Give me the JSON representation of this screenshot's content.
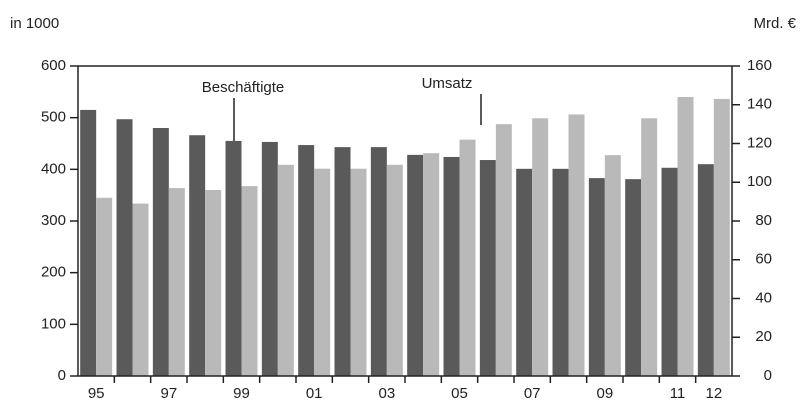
{
  "chart_data": {
    "type": "bar",
    "y_label": "in 1000",
    "y2_label": "Mrd. €",
    "categories": [
      "95",
      null,
      "97",
      null,
      "99",
      null,
      "01",
      null,
      "03",
      null,
      "05",
      null,
      "07",
      null,
      "09",
      null,
      "11",
      "12"
    ],
    "series": [
      {
        "name": "Beschäftigte",
        "color": "#5a5a5a",
        "axis": "y",
        "values": [
          515,
          497,
          480,
          466,
          455,
          453,
          447,
          443,
          443,
          428,
          424,
          418,
          401,
          401,
          383,
          381,
          403,
          410
        ]
      },
      {
        "name": "Umsatz",
        "color": "#b9b9b9",
        "axis": "y2",
        "values": [
          92,
          89,
          97,
          96,
          98,
          109,
          107,
          107,
          109,
          115,
          122,
          130,
          133,
          135,
          114,
          133,
          144,
          143
        ]
      }
    ],
    "ylim": [
      0,
      600
    ],
    "yticks": [
      0,
      100,
      200,
      300,
      400,
      500,
      600
    ],
    "y2lim": [
      0,
      160
    ],
    "y2ticks": [
      0,
      20,
      40,
      60,
      80,
      100,
      120,
      140,
      160
    ]
  }
}
